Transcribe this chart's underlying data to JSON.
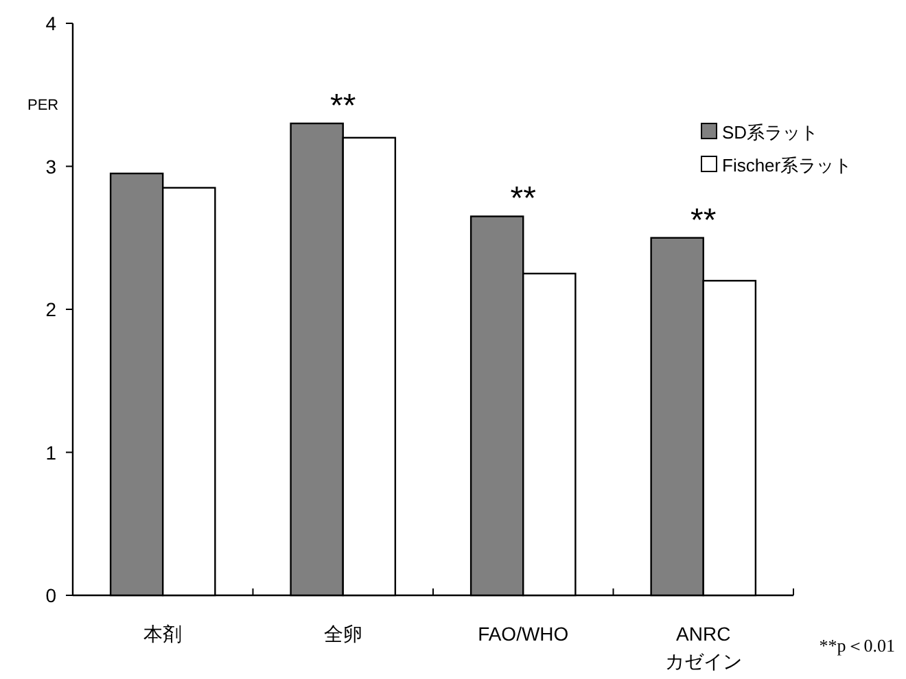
{
  "chart_data": {
    "type": "bar",
    "ylabel": "PER",
    "categories": [
      "本剤",
      "全卵",
      "FAO/WHO",
      "ANRC カゼイン"
    ],
    "series": [
      {
        "name": "SD系ラット",
        "color": "#808080",
        "values": [
          2.95,
          3.3,
          2.65,
          2.5
        ]
      },
      {
        "name": "Fischer系ラット",
        "color": "#ffffff",
        "values": [
          2.85,
          3.2,
          2.25,
          2.2
        ]
      }
    ],
    "ylim": [
      0,
      4
    ],
    "yticks": [
      0,
      1,
      2,
      3,
      4
    ],
    "grid": false,
    "legend": "right",
    "annotations": [
      {
        "text": "**",
        "x": "全卵",
        "y": 3.3
      },
      {
        "text": "**",
        "x": "FAO/WHO",
        "y": 2.65
      },
      {
        "text": "**",
        "x": "ANRC カゼイン",
        "y": 2.5
      },
      "**p＜0.01"
    ]
  }
}
